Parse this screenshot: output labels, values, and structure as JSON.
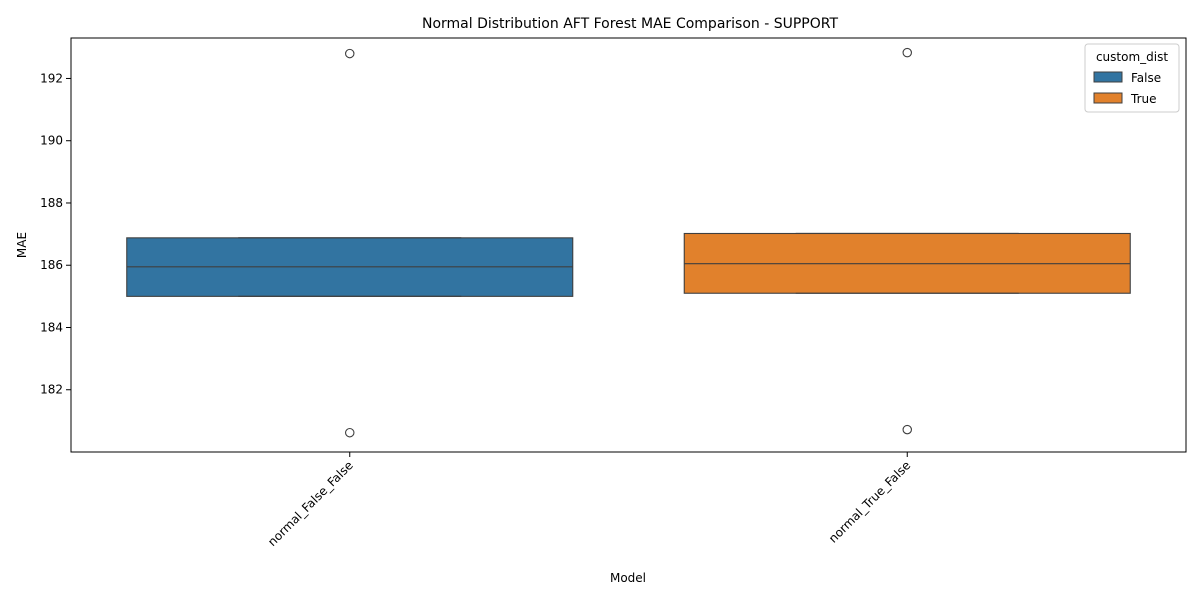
{
  "chart_data": {
    "type": "box",
    "title": "Normal Distribution AFT Forest MAE Comparison - SUPPORT",
    "xlabel": "Model",
    "ylabel": "MAE",
    "ylim": [
      180.0,
      193.3
    ],
    "yticks": [
      182,
      184,
      186,
      188,
      190,
      192
    ],
    "categories": [
      "normal_False_False",
      "normal_True_False"
    ],
    "legend": {
      "title": "custom_dist",
      "placement": "top-right",
      "entries": [
        "False",
        "True"
      ]
    },
    "series": [
      {
        "name": "False",
        "color": "#3274a1",
        "category": "normal_False_False",
        "q1": 185.0,
        "median": 185.95,
        "q3": 186.88,
        "outliers": [
          192.8,
          180.62
        ]
      },
      {
        "name": "True",
        "color": "#e1812c",
        "category": "normal_True_False",
        "q1": 185.1,
        "median": 186.05,
        "q3": 187.02,
        "outliers": [
          192.83,
          180.72
        ]
      }
    ],
    "grid": false
  }
}
